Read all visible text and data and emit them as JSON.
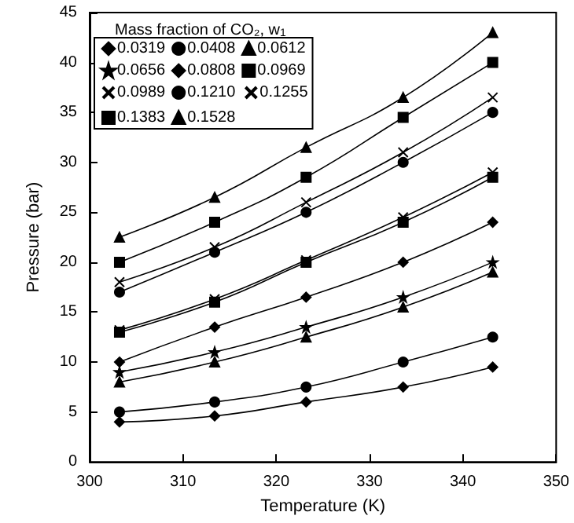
{
  "chart_data": {
    "type": "line",
    "xlabel": "Temperature (K)",
    "ylabel": "Pressure (bar)",
    "legend_title": "Mass fraction of CO₂, w$_{1}$",
    "legend": "top left",
    "grid": false,
    "line_style": "solid",
    "xlim": [
      300,
      350
    ],
    "xticks": [
      300,
      310,
      320,
      330,
      340,
      350
    ],
    "ylim": [
      0,
      45
    ],
    "yticks": [
      0,
      5,
      10,
      15,
      20,
      25,
      30,
      35,
      40,
      45
    ],
    "x": [
      303.2,
      313.4,
      323.2,
      333.6,
      343.2
    ],
    "series": [
      {
        "name": "0.0319",
        "color": "#000000",
        "marker": "diamond",
        "values": [
          4,
          4.6,
          6,
          7.5,
          9.5
        ]
      },
      {
        "name": "0.0408",
        "color": "#000000",
        "marker": "circle",
        "values": [
          5,
          6,
          7.5,
          10,
          12.5
        ]
      },
      {
        "name": "0.0612",
        "color": "#000000",
        "marker": "triangle",
        "values": [
          8,
          10,
          12.5,
          15.5,
          19
        ]
      },
      {
        "name": "0.0656",
        "color": "#000000",
        "marker": "star",
        "values": [
          9,
          11,
          13.5,
          16.5,
          20
        ]
      },
      {
        "name": "0.0808",
        "color": "#000000",
        "marker": "diamond",
        "values": [
          10,
          13.5,
          16.5,
          20,
          24
        ]
      },
      {
        "name": "0.0969",
        "color": "#000000",
        "marker": "square",
        "values": [
          13,
          16,
          20,
          24,
          28.5
        ]
      },
      {
        "name": "0.0989",
        "color": "#000000",
        "marker": "cross",
        "values": [
          13.2,
          16.3,
          20.2,
          24.5,
          29
        ]
      },
      {
        "name": "0.1210",
        "color": "#000000",
        "marker": "circle",
        "values": [
          17,
          21,
          25,
          30,
          35
        ]
      },
      {
        "name": "0.1255",
        "color": "#000000",
        "marker": "cross",
        "values": [
          18,
          21.5,
          26,
          31,
          36.5
        ]
      },
      {
        "name": "0.1383",
        "color": "#000000",
        "marker": "square",
        "values": [
          20,
          24,
          28.5,
          34.5,
          40
        ]
      },
      {
        "name": "0.1528",
        "color": "#000000",
        "marker": "triangle",
        "values": [
          22.5,
          26.5,
          31.5,
          36.5,
          43
        ]
      }
    ]
  }
}
